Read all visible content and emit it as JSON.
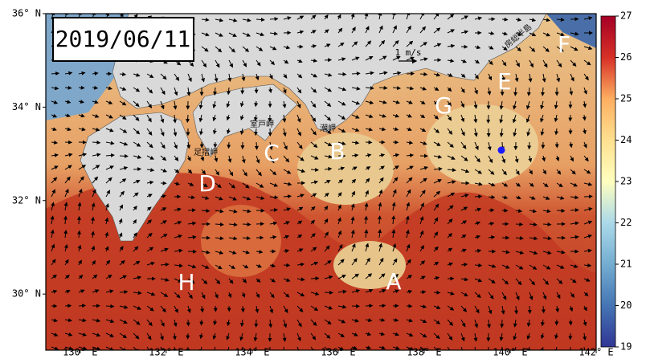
{
  "map": {
    "date": "2019/06/11",
    "scale_label": "1 m/s",
    "lon_range": [
      129.2,
      142
    ],
    "lat_range": [
      28.8,
      36
    ],
    "lon_ticks": [
      {
        "value": 130,
        "label": "130° E"
      },
      {
        "value": 132,
        "label": "132° E"
      },
      {
        "value": 134,
        "label": "134° E"
      },
      {
        "value": 136,
        "label": "136° E"
      },
      {
        "value": 138,
        "label": "138° E"
      },
      {
        "value": 140,
        "label": "140° E"
      },
      {
        "value": 142,
        "label": "142° E"
      }
    ],
    "lat_ticks": [
      {
        "value": 36,
        "label": "36° N"
      },
      {
        "value": 34,
        "label": "34° N"
      },
      {
        "value": 32,
        "label": "32° N"
      },
      {
        "value": 30,
        "label": "30° N"
      }
    ],
    "colorbar": {
      "lim": [
        19,
        27
      ],
      "ticks": [
        19,
        20,
        21,
        22,
        23,
        24,
        25,
        26,
        27
      ]
    },
    "region_labels": [
      "A",
      "B",
      "C",
      "D",
      "E",
      "F",
      "G",
      "H"
    ],
    "place_names": [
      "足摺岬",
      "室戸岬",
      "潮岬",
      "房総半島"
    ]
  }
}
